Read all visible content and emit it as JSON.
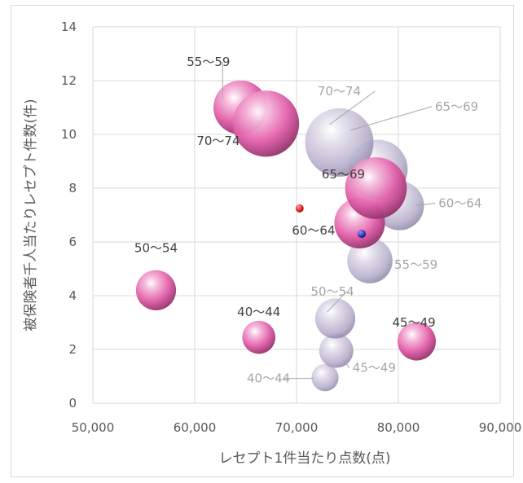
{
  "chart_data": {
    "type": "scatter",
    "subtype": "bubble",
    "xlabel": "レセプト1件当たり点数(点)",
    "ylabel": "被保険者千人当たりレセプト件数(件)",
    "xlim": [
      50000,
      90000
    ],
    "ylim": [
      0,
      14
    ],
    "x_ticks": [
      "50,000",
      "60,000",
      "70,000",
      "80,000",
      "90,000"
    ],
    "y_ticks": [
      "0",
      "2",
      "4",
      "6",
      "8",
      "10",
      "12",
      "14"
    ],
    "grid": true,
    "colors": {
      "series_a": "#e86fb1",
      "series_b": "#b9b2cc",
      "label_a": "#404040",
      "label_b": "#a6a6a6",
      "marker_red": "#e00000",
      "marker_blue": "#1f1fcf"
    },
    "series": [
      {
        "style": "pink",
        "points": [
          {
            "label": "40〜44",
            "x": 66300,
            "y": 2.45,
            "size": 1.5
          },
          {
            "label": "45〜49",
            "x": 81800,
            "y": 2.3,
            "size": 2.0
          },
          {
            "label": "50〜54",
            "x": 56200,
            "y": 4.2,
            "size": 2.2
          },
          {
            "label": "55〜59",
            "x": 64500,
            "y": 11.0,
            "size": 4.0
          },
          {
            "label": "60〜64",
            "x": 76200,
            "y": 6.7,
            "size": 3.5
          },
          {
            "label": "65〜69",
            "x": 77800,
            "y": 8.0,
            "size": 5.2
          },
          {
            "label": "70〜74",
            "x": 67000,
            "y": 10.4,
            "size": 6.0
          }
        ]
      },
      {
        "style": "lavender",
        "points": [
          {
            "label": "40〜44",
            "x": 72800,
            "y": 0.95,
            "size": 1.0
          },
          {
            "label": "45〜49",
            "x": 73900,
            "y": 1.95,
            "size": 1.6
          },
          {
            "label": "50〜54",
            "x": 73800,
            "y": 3.15,
            "size": 2.2
          },
          {
            "label": "55〜59",
            "x": 77200,
            "y": 5.3,
            "size": 2.8
          },
          {
            "label": "60〜64",
            "x": 80100,
            "y": 7.35,
            "size": 3.3
          },
          {
            "label": "65〜69",
            "x": 78000,
            "y": 8.7,
            "size": 4.8
          },
          {
            "label": "70〜74",
            "x": 74200,
            "y": 9.7,
            "size": 6.4
          }
        ]
      }
    ],
    "markers": [
      {
        "x": 70300,
        "y": 7.25,
        "color": "red"
      },
      {
        "x": 76400,
        "y": 6.3,
        "color": "blue"
      }
    ]
  }
}
